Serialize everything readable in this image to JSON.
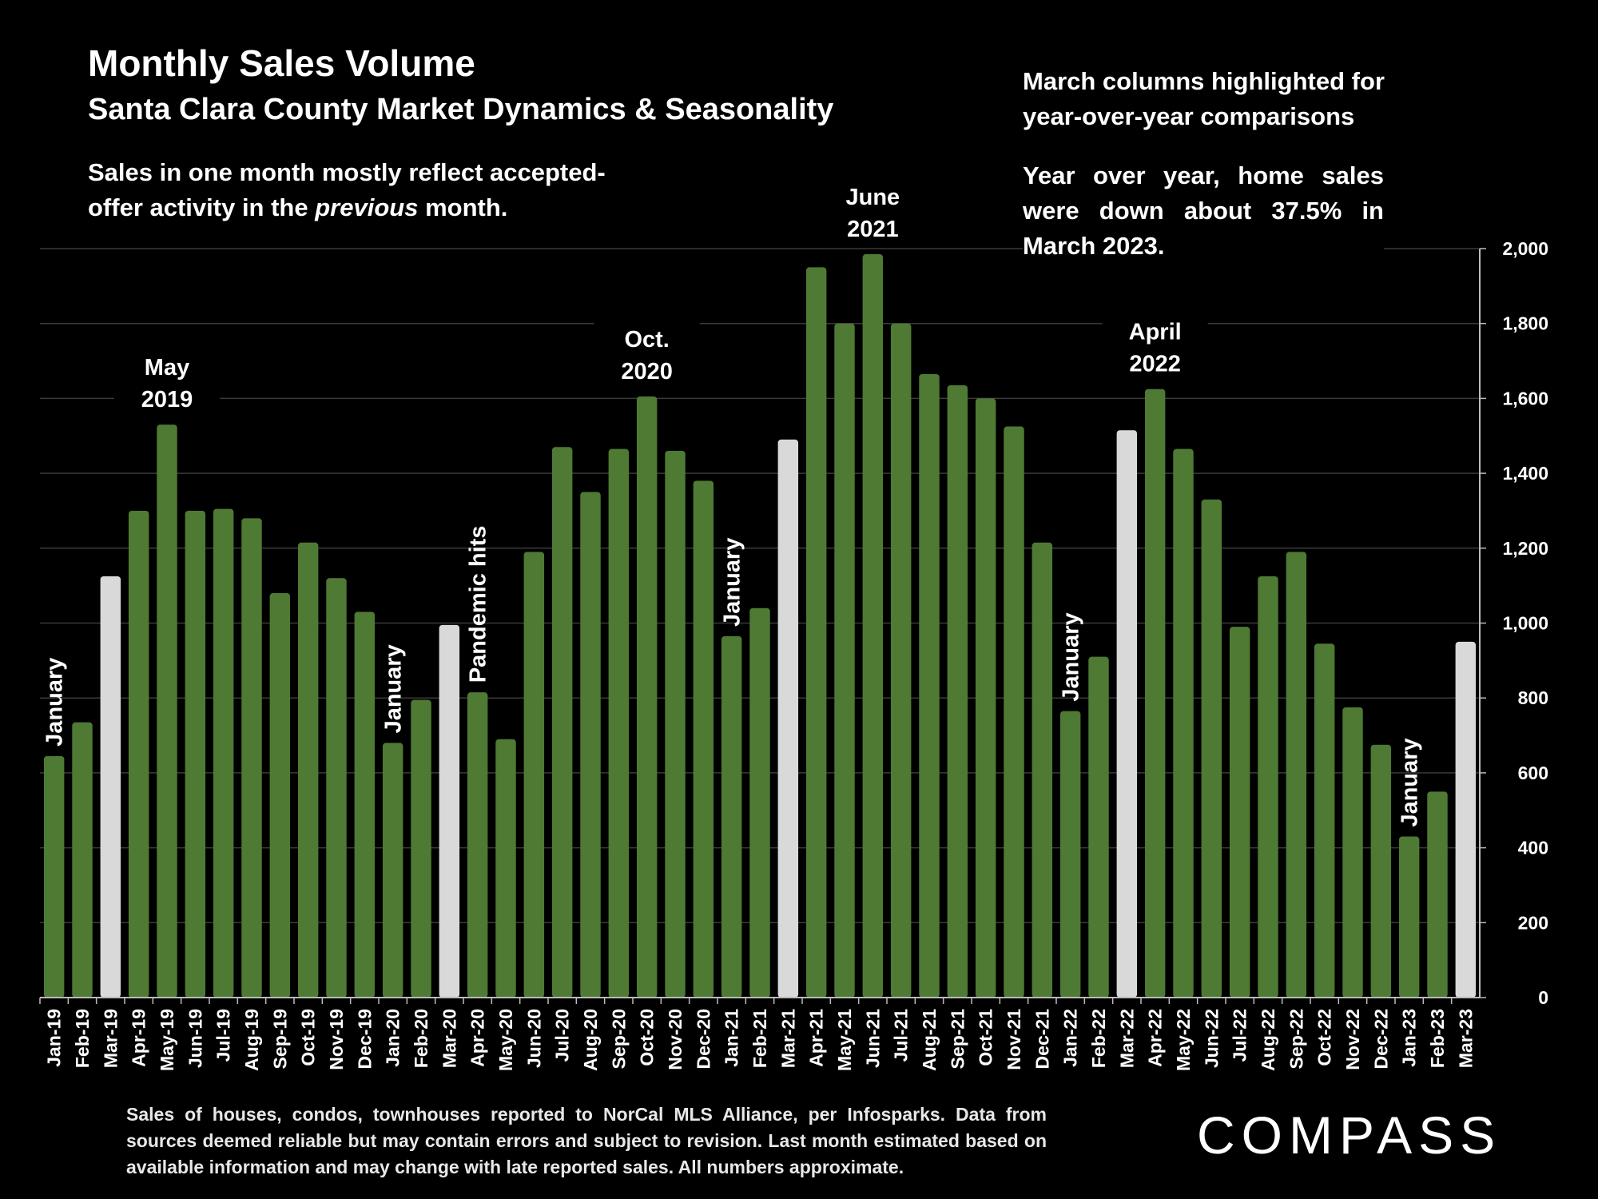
{
  "header": {
    "title": "Monthly Sales Volume",
    "subtitle": "Santa Clara County Market Dynamics & Seasonality"
  },
  "notes": {
    "left_part1": "Sales in one month mostly reflect accepted-offer activity in the ",
    "left_emphasis": "previous",
    "left_part2": " month.",
    "right_highlight": "March columns highlighted for year-over-year comparisons",
    "right_yoy": "Year over year, home sales were down  about 37.5% in March 2023."
  },
  "footnote": "Sales of houses, condos, townhouses reported to NorCal MLS Alliance, per Infosparks. Data from sources deemed reliable but may contain errors and subject to revision. Last month estimated based on available information and may change with late reported sales. All numbers approximate.",
  "logo": "COMPASS",
  "colors": {
    "background": "#000000",
    "bar": "#4e7a33",
    "highlight_bar": "#d9d9d9",
    "gridline": "#3a3a3a",
    "text": "#ffffff"
  },
  "chart_data": {
    "type": "bar",
    "title": "Monthly Sales Volume",
    "ylim": [
      0,
      2000
    ],
    "yticks": [
      "0",
      "200",
      "400",
      "600",
      "800",
      "1,000",
      "1,200",
      "1,400",
      "1,600",
      "1,800",
      "2,000"
    ],
    "y_axis_side": "right",
    "grid": true,
    "categories": [
      "Jan-19",
      "Feb-19",
      "Mar-19",
      "Apr-19",
      "May-19",
      "Jun-19",
      "Jul-19",
      "Aug-19",
      "Sep-19",
      "Oct-19",
      "Nov-19",
      "Dec-19",
      "Jan-20",
      "Feb-20",
      "Mar-20",
      "Apr-20",
      "May-20",
      "Jun-20",
      "Jul-20",
      "Aug-20",
      "Sep-20",
      "Oct-20",
      "Nov-20",
      "Dec-20",
      "Jan-21",
      "Feb-21",
      "Mar-21",
      "Apr-21",
      "May-21",
      "Jun-21",
      "Jul-21",
      "Aug-21",
      "Sep-21",
      "Oct-21",
      "Nov-21",
      "Dec-21",
      "Jan-22",
      "Feb-22",
      "Mar-22",
      "Apr-22",
      "May-22",
      "Jun-22",
      "Jul-22",
      "Aug-22",
      "Sep-22",
      "Oct-22",
      "Nov-22",
      "Dec-22",
      "Jan-23",
      "Feb-23",
      "Mar-23"
    ],
    "values": [
      645,
      735,
      1125,
      1300,
      1530,
      1300,
      1305,
      1280,
      1080,
      1215,
      1120,
      1030,
      680,
      795,
      995,
      815,
      690,
      1190,
      1470,
      1350,
      1465,
      1605,
      1460,
      1380,
      965,
      1040,
      1490,
      1950,
      1800,
      1985,
      1800,
      1665,
      1635,
      1600,
      1525,
      1215,
      765,
      910,
      1515,
      1625,
      1465,
      1330,
      990,
      1125,
      1190,
      945,
      775,
      675,
      430,
      550,
      950
    ],
    "highlighted": [
      "Mar-19",
      "Mar-20",
      "Mar-21",
      "Mar-22",
      "Mar-23"
    ],
    "annotations": [
      {
        "text": "January",
        "category": "Jan-19",
        "vertical": true
      },
      {
        "text": "May|2019",
        "category": "May-19",
        "vertical": false
      },
      {
        "text": "January",
        "category": "Jan-20",
        "vertical": true
      },
      {
        "text": "Pandemic hits",
        "category": "Apr-20",
        "vertical": true
      },
      {
        "text": "Oct.|2020",
        "category": "Oct-20",
        "vertical": false
      },
      {
        "text": "January",
        "category": "Jan-21",
        "vertical": true
      },
      {
        "text": "June|2021",
        "category": "Jun-21",
        "vertical": false
      },
      {
        "text": "January",
        "category": "Jan-22",
        "vertical": true
      },
      {
        "text": "April|2022",
        "category": "Apr-22",
        "vertical": false
      },
      {
        "text": "January",
        "category": "Jan-23",
        "vertical": true
      }
    ]
  }
}
